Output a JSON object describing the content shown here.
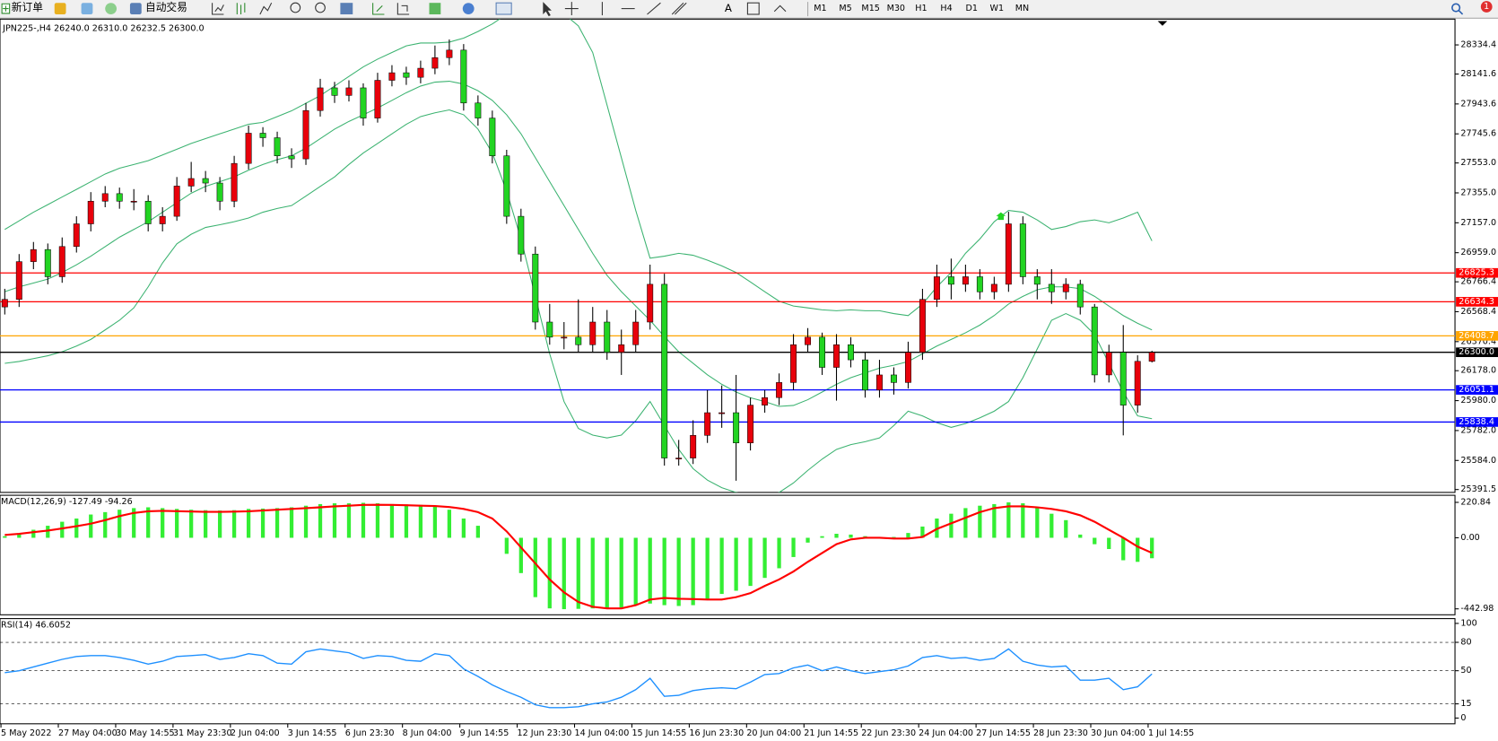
{
  "toolbar": {
    "new_order": "新订单",
    "auto_trading": "自动交易",
    "text_tool": "A",
    "timeframes": [
      "M1",
      "M5",
      "M15",
      "M30",
      "H1",
      "H4",
      "D1",
      "W1",
      "MN"
    ],
    "notifications": 1
  },
  "chart_data": [
    {
      "type": "candlestick",
      "title": "JPN225-,H4  26240.0 26310.0 26232.5 26300.0",
      "categories": [
        "5 May 2022",
        null,
        null,
        null,
        "27 May 04:00",
        null,
        null,
        null,
        "30 May 14:55",
        null,
        null,
        null,
        "31 May 23:30",
        null,
        null,
        null,
        "2 Jun 04:00",
        null,
        null,
        null,
        "3 Jun 14:55",
        null,
        null,
        null,
        "6 Jun 23:30",
        null,
        null,
        null,
        "8 Jun 04:00",
        null,
        null,
        null,
        "9 Jun 14:55",
        null,
        null,
        null,
        "12 Jun 23:30",
        null,
        null,
        null,
        "14 Jun 04:00",
        null,
        null,
        null,
        "15 Jun 14:55",
        null,
        null,
        null,
        "16 Jun 23:30",
        null,
        null,
        null,
        "20 Jun 04:00",
        null,
        null,
        null,
        "21 Jun 14:55",
        null,
        null,
        null,
        "22 Jun 23:30",
        null,
        null,
        null,
        "24 Jun 04:00",
        null,
        null,
        null,
        "27 Jun 14:55",
        null,
        null,
        null,
        "28 Jun 23:30",
        null,
        null,
        null,
        "30 Jun 04:00",
        null,
        null,
        null,
        "1 Jul 14:55"
      ],
      "candles": [
        [
          26600,
          26720,
          26550,
          26650
        ],
        [
          26650,
          26950,
          26600,
          26900
        ],
        [
          26900,
          27030,
          26850,
          26980
        ],
        [
          26980,
          27020,
          26750,
          26800
        ],
        [
          26800,
          27060,
          26760,
          27000
        ],
        [
          27000,
          27200,
          26960,
          27150
        ],
        [
          27150,
          27360,
          27100,
          27300
        ],
        [
          27300,
          27400,
          27260,
          27350
        ],
        [
          27350,
          27390,
          27250,
          27300
        ],
        [
          27300,
          27380,
          27240,
          27300
        ],
        [
          27300,
          27340,
          27100,
          27150
        ],
        [
          27150,
          27260,
          27100,
          27200
        ],
        [
          27200,
          27460,
          27170,
          27400
        ],
        [
          27400,
          27560,
          27360,
          27450
        ],
        [
          27450,
          27500,
          27360,
          27420
        ],
        [
          27420,
          27460,
          27240,
          27300
        ],
        [
          27300,
          27600,
          27260,
          27550
        ],
        [
          27550,
          27800,
          27510,
          27750
        ],
        [
          27750,
          27790,
          27660,
          27720
        ],
        [
          27720,
          27760,
          27550,
          27600
        ],
        [
          27600,
          27650,
          27520,
          27580
        ],
        [
          27580,
          27950,
          27540,
          27900
        ],
        [
          27900,
          28110,
          27860,
          28050
        ],
        [
          28050,
          28090,
          27950,
          28000
        ],
        [
          28000,
          28100,
          27960,
          28050
        ],
        [
          28050,
          28080,
          27800,
          27850
        ],
        [
          27850,
          28150,
          27820,
          28100
        ],
        [
          28100,
          28200,
          28060,
          28150
        ],
        [
          28150,
          28190,
          28070,
          28120
        ],
        [
          28120,
          28230,
          28080,
          28180
        ],
        [
          28180,
          28330,
          28140,
          28250
        ],
        [
          28250,
          28370,
          28200,
          28300
        ],
        [
          28300,
          28340,
          27900,
          27950
        ],
        [
          27950,
          28000,
          27800,
          27850
        ],
        [
          27850,
          27900,
          27550,
          27600
        ],
        [
          27600,
          27640,
          27150,
          27200
        ],
        [
          27200,
          27250,
          26900,
          26950
        ],
        [
          26950,
          27000,
          26450,
          26500
        ],
        [
          26500,
          26620,
          26350,
          26400
        ],
        [
          26400,
          26500,
          26320,
          26400
        ],
        [
          26400,
          26650,
          26300,
          26350
        ],
        [
          26350,
          26600,
          26300,
          26500
        ],
        [
          26500,
          26580,
          26250,
          26300
        ],
        [
          26300,
          26450,
          26150,
          26350
        ],
        [
          26350,
          26580,
          26300,
          26500
        ],
        [
          26500,
          26880,
          26450,
          26750
        ],
        [
          26750,
          26820,
          25550,
          25600
        ],
        [
          25600,
          25720,
          25550,
          25600
        ],
        [
          25600,
          25850,
          25560,
          25750
        ],
        [
          25750,
          26050,
          25700,
          25900
        ],
        [
          25900,
          26080,
          25800,
          25900
        ],
        [
          25900,
          26150,
          25450,
          25700
        ],
        [
          25700,
          26000,
          25650,
          25950
        ],
        [
          25950,
          26050,
          25900,
          26000
        ],
        [
          26000,
          26160,
          25950,
          26100
        ],
        [
          26100,
          26420,
          26050,
          26350
        ],
        [
          26350,
          26460,
          26300,
          26400
        ],
        [
          26400,
          26430,
          26150,
          26200
        ],
        [
          26200,
          26420,
          25980,
          26350
        ],
        [
          26350,
          26400,
          26200,
          26250
        ],
        [
          26250,
          26300,
          26000,
          26050
        ],
        [
          26050,
          26250,
          26000,
          26150
        ],
        [
          26150,
          26200,
          26020,
          26100
        ],
        [
          26100,
          26370,
          26060,
          26300
        ],
        [
          26300,
          26720,
          26250,
          26650
        ],
        [
          26650,
          26880,
          26600,
          26800
        ],
        [
          26800,
          26920,
          26650,
          26750
        ],
        [
          26750,
          26880,
          26700,
          26800
        ],
        [
          26800,
          26850,
          26650,
          26700
        ],
        [
          26700,
          26800,
          26650,
          26750
        ],
        [
          26750,
          27230,
          26700,
          27150
        ],
        [
          27150,
          27200,
          26750,
          26800
        ],
        [
          26800,
          26850,
          26650,
          26750
        ],
        [
          26750,
          26850,
          26620,
          26700
        ],
        [
          26700,
          26790,
          26650,
          26750
        ],
        [
          26750,
          26780,
          26550,
          26600
        ],
        [
          26600,
          26620,
          26100,
          26150
        ],
        [
          26150,
          26350,
          26100,
          26300
        ],
        [
          26300,
          26480,
          25750,
          25950
        ],
        [
          25950,
          26280,
          25900,
          26240
        ],
        [
          26240,
          26310,
          26232.5,
          26300
        ]
      ],
      "up_color": "#e8000b",
      "down_color": "#22d422",
      "wick_color": "#000000",
      "bands": {
        "color": "#3cb371",
        "upper": [
          27113,
          27170,
          27227,
          27277,
          27328,
          27378,
          27429,
          27480,
          27518,
          27543,
          27568,
          27606,
          27644,
          27682,
          27714,
          27746,
          27777,
          27809,
          27822,
          27860,
          27898,
          27948,
          27999,
          28062,
          28126,
          28189,
          28240,
          28284,
          28328,
          28347,
          28347,
          28353,
          28379,
          28423,
          28473,
          28537,
          28600,
          28620,
          28600,
          28540,
          28460,
          28284,
          27936,
          27588,
          27239,
          26923,
          26936,
          26955,
          26942,
          26910,
          26872,
          26828,
          26765,
          26701,
          26638,
          26606,
          26594,
          26581,
          26575,
          26581,
          26575,
          26575,
          26556,
          26543,
          26619,
          26733,
          26828,
          26955,
          27050,
          27164,
          27239,
          27227,
          27176,
          27113,
          27132,
          27164,
          27176,
          27157,
          27189,
          27227,
          27037
        ],
        "middle": [
          26701,
          26733,
          26758,
          26784,
          26828,
          26879,
          26936,
          26999,
          27062,
          27113,
          27164,
          27227,
          27290,
          27353,
          27398,
          27429,
          27461,
          27505,
          27543,
          27575,
          27600,
          27651,
          27714,
          27777,
          27828,
          27872,
          27917,
          27967,
          28018,
          28062,
          28088,
          28094,
          28075,
          28031,
          27967,
          27872,
          27746,
          27588,
          27429,
          27271,
          27113,
          26955,
          26809,
          26701,
          26606,
          26512,
          26404,
          26303,
          26227,
          26151,
          26088,
          26037,
          25999,
          25974,
          25942,
          25948,
          25986,
          26037,
          26088,
          26132,
          26164,
          26195,
          26214,
          26239,
          26290,
          26341,
          26385,
          26429,
          26480,
          26543,
          26619,
          26670,
          26714,
          26733,
          26733,
          26721,
          26670,
          26606,
          26543,
          26492,
          26448
        ],
        "lower": [
          26227,
          26239,
          26258,
          26277,
          26303,
          26341,
          26385,
          26448,
          26512,
          26594,
          26733,
          26891,
          27018,
          27081,
          27126,
          27144,
          27164,
          27189,
          27227,
          27252,
          27271,
          27334,
          27398,
          27461,
          27543,
          27619,
          27682,
          27746,
          27809,
          27860,
          27885,
          27904,
          27872,
          27777,
          27619,
          27366,
          27050,
          26670,
          26290,
          25974,
          25796,
          25752,
          25733,
          25752,
          25847,
          25974,
          25815,
          25657,
          25530,
          25454,
          25404,
          25372,
          25353,
          25340,
          25372,
          25435,
          25518,
          25593,
          25657,
          25689,
          25708,
          25733,
          25815,
          25910,
          25879,
          25834,
          25803,
          25828,
          25866,
          25910,
          25974,
          26132,
          26322,
          26512,
          26556,
          26512,
          26417,
          26227,
          26037,
          25879,
          25860
        ]
      },
      "price_lines": [
        {
          "value": 26825.3,
          "color": "#ff0000"
        },
        {
          "value": 26634.3,
          "color": "#ff0000"
        },
        {
          "value": 26408.7,
          "color": "#ffa500"
        },
        {
          "value": 26300,
          "label": "26300.0",
          "color": "#000000"
        },
        {
          "value": 26051.1,
          "color": "#0000ff"
        },
        {
          "value": 25838.4,
          "color": "#0000ff"
        }
      ],
      "ylim": [
        25372.5,
        28505
      ],
      "yticks": [
        28334.4,
        28141.6,
        27943.6,
        27745.6,
        {
          "value": 27553,
          "label": "27553.0"
        },
        {
          "value": 27355,
          "label": "27355.0"
        },
        {
          "value": 27157,
          "label": "27157.0"
        },
        {
          "value": 26959,
          "label": "26959.0"
        },
        26766.4,
        26568.4,
        26370.4,
        {
          "value": 26178,
          "label": "26178.0"
        },
        {
          "value": 25980,
          "label": "25980.0"
        },
        {
          "value": 25782,
          "label": "25782.0"
        },
        {
          "value": 25584,
          "label": "25584.0"
        },
        25391.5
      ]
    },
    {
      "type": "macd",
      "title": "MACD(12,26,9) -127.49 -94.26",
      "values": [
        10,
        25,
        50,
        75,
        100,
        120,
        145,
        160,
        175,
        185,
        190,
        185,
        180,
        175,
        172,
        170,
        172,
        180,
        182,
        185,
        190,
        200,
        210,
        215,
        215,
        218,
        215,
        210,
        208,
        205,
        200,
        175,
        120,
        75,
        0,
        -100,
        -220,
        -370,
        -440,
        -445,
        -442.98,
        -440,
        -440,
        -435,
        -420,
        -410,
        -420,
        -425,
        -420,
        -380,
        -350,
        -330,
        -300,
        -250,
        -190,
        -120,
        -30,
        10,
        25,
        20,
        10,
        5,
        5,
        30,
        70,
        120,
        150,
        185,
        200,
        210,
        220.84,
        215,
        190,
        150,
        110,
        20,
        -40,
        -70,
        -140,
        -150,
        -127.49
      ],
      "signal": [
        18,
        25,
        35,
        45,
        58,
        72,
        88,
        110,
        135,
        155,
        165,
        168,
        166,
        164,
        162,
        162,
        163,
        165,
        170,
        175,
        180,
        185,
        190,
        196,
        200,
        205,
        206,
        205,
        203,
        200,
        198,
        192,
        180,
        160,
        120,
        40,
        -60,
        -160,
        -260,
        -340,
        -400,
        -430,
        -440,
        -440,
        -420,
        -385,
        -375,
        -380,
        -382,
        -385,
        -385,
        -370,
        -345,
        -300,
        -260,
        -210,
        -150,
        -95,
        -40,
        -10,
        0,
        0,
        -5,
        -5,
        5,
        55,
        90,
        125,
        160,
        185,
        196,
        196,
        190,
        180,
        165,
        140,
        100,
        50,
        0,
        -55,
        -94.26
      ],
      "color": "#33ee33",
      "signal_color": "#ff0000",
      "ylim": [
        -480,
        265
      ],
      "yticks": [
        220.84,
        {
          "value": 0,
          "label": "0.00"
        },
        -442.98
      ]
    },
    {
      "type": "line",
      "title": "RSI(14) 46.6052",
      "values": [
        48,
        50,
        54,
        58,
        62,
        65,
        66,
        66,
        64,
        61,
        57,
        60,
        65,
        66,
        67,
        62,
        64,
        68,
        66,
        58,
        57,
        70,
        73,
        71,
        69,
        63,
        66,
        65,
        61,
        60,
        68,
        66,
        52,
        44,
        35,
        28,
        22,
        14,
        11,
        11,
        12,
        15,
        17,
        22,
        30,
        42,
        23,
        24,
        29,
        31,
        32,
        31,
        38,
        46,
        47,
        53,
        56,
        50,
        54,
        50,
        47,
        49,
        51,
        55,
        64,
        66,
        63,
        64,
        61,
        63,
        73,
        60,
        56,
        54,
        55,
        40,
        40,
        42,
        30,
        33,
        46.6052
      ],
      "color": "#1e90ff",
      "ylim": [
        0,
        100
      ],
      "yticks": [
        100,
        80,
        50,
        15,
        0
      ],
      "grid": true
    }
  ]
}
